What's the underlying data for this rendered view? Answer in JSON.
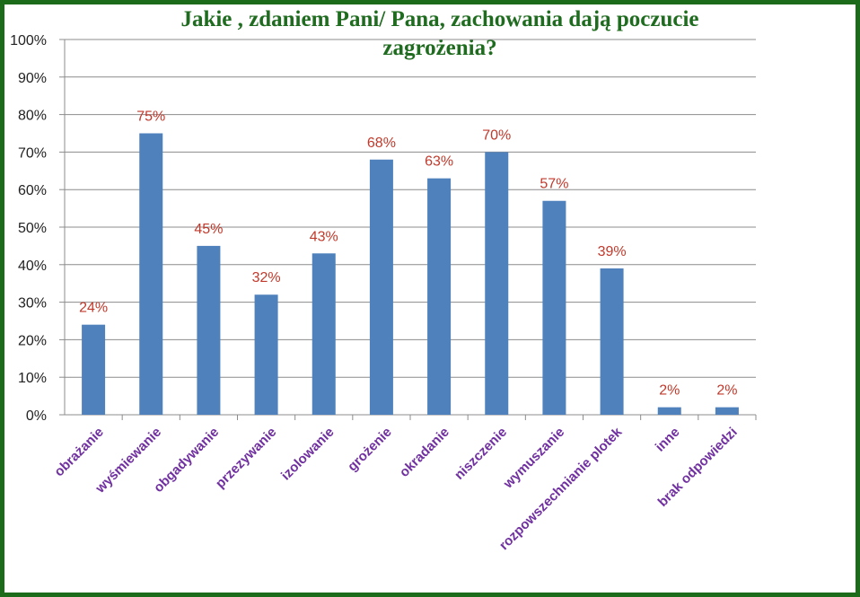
{
  "chart_data": {
    "type": "bar",
    "title": "Jakie , zdaniem Pani/ Pana,  zachowania dają  poczucie\nzagrożenia?",
    "categories": [
      "obrażanie",
      "wyśmiewanie",
      "obgadywanie",
      "przezywanie",
      "izolowanie",
      "grożenie",
      "okradanie",
      "niszczenie",
      "wymuszanie",
      "rozpowszechnianie plotek",
      "inne",
      "brak odpowiedzi"
    ],
    "values": [
      24,
      75,
      45,
      32,
      43,
      68,
      63,
      70,
      57,
      39,
      2,
      2
    ],
    "data_labels": [
      "24%",
      "75%",
      "45%",
      "32%",
      "43%",
      "68%",
      "63%",
      "70%",
      "57%",
      "39%",
      "2%",
      "2%"
    ],
    "ylim": [
      0,
      100
    ],
    "yticks": [
      "0%",
      "10%",
      "20%",
      "30%",
      "40%",
      "50%",
      "60%",
      "70%",
      "80%",
      "90%",
      "100%"
    ],
    "xlabel": "",
    "ylabel": "",
    "grid": true,
    "legend": "none",
    "colors": {
      "bar": "#4f81bd",
      "data_label": "#c0392b",
      "category_label": "#7030a0",
      "title": "#1f6b1f",
      "frame": "#1b6b1b",
      "grid": "#8c8c8c"
    }
  }
}
